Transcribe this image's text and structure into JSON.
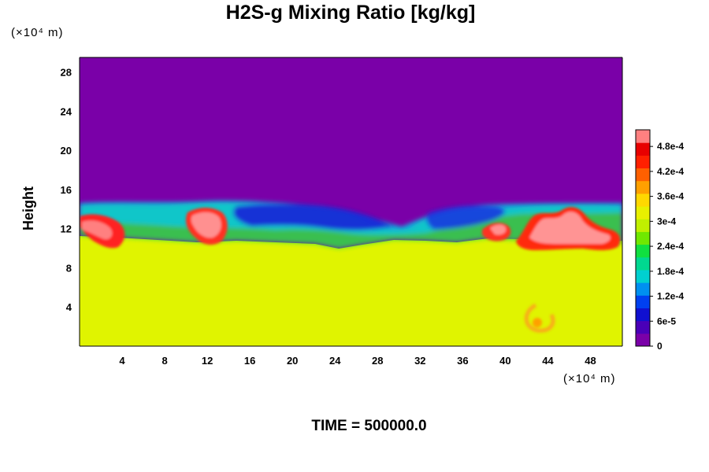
{
  "chart_data": {
    "type": "heatmap",
    "title": "H2S-g Mixing Ratio [kg/kg]",
    "ylabel": "Height",
    "xlabel": "",
    "y_unit": "(×10⁴ m)",
    "x_unit": "(×10⁴ m)",
    "x_ticks": [
      4,
      8,
      12,
      16,
      20,
      24,
      28,
      32,
      36,
      40,
      44,
      48
    ],
    "y_ticks": [
      4,
      8,
      12,
      16,
      20,
      24,
      28
    ],
    "xlim": [
      0,
      51
    ],
    "ylim": [
      0,
      29.5
    ],
    "colorbar": {
      "range": [
        0,
        0.00052
      ],
      "tick_values": [
        0,
        6e-05,
        0.00012,
        0.00018,
        0.00024,
        0.0003,
        0.00036,
        0.00042,
        0.00048
      ],
      "tick_labels": [
        "0",
        "6e-5",
        "1.2e-4",
        "1.8e-4",
        "2.4e-4",
        "3e-4",
        "3.6e-4",
        "4.2e-4",
        "4.8e-4"
      ],
      "colors": [
        "#7a00a8",
        "#4a00b8",
        "#1010d0",
        "#0040f0",
        "#0090f0",
        "#00d0d0",
        "#00d890",
        "#10e040",
        "#70e800",
        "#c0f000",
        "#e8f000",
        "#ffd800",
        "#ffa000",
        "#ff6000",
        "#ff2000",
        "#e80000",
        "#ff8080"
      ]
    },
    "fields": {
      "upper_layer_value": 0,
      "lower_layer_value": 0.00034,
      "layer_interface_height": 11,
      "mixing_zone_top_height": 15,
      "high_patches": [
        {
          "x": [
            0,
            4
          ],
          "y": [
            10,
            14
          ],
          "value": 0.00047
        },
        {
          "x": [
            10.5,
            14
          ],
          "y": [
            10,
            14
          ],
          "value": 0.0005
        },
        {
          "x": [
            38,
            41
          ],
          "y": [
            10,
            12.5
          ],
          "value": 0.00045
        },
        {
          "x": [
            42,
            51
          ],
          "y": [
            10,
            14.5
          ],
          "value": 0.0005
        },
        {
          "x": [
            42.5,
            44.5
          ],
          "y": [
            1.5,
            4
          ],
          "value": 0.0004
        }
      ]
    }
  },
  "footer": {
    "time_label": "TIME = 500000.0"
  }
}
